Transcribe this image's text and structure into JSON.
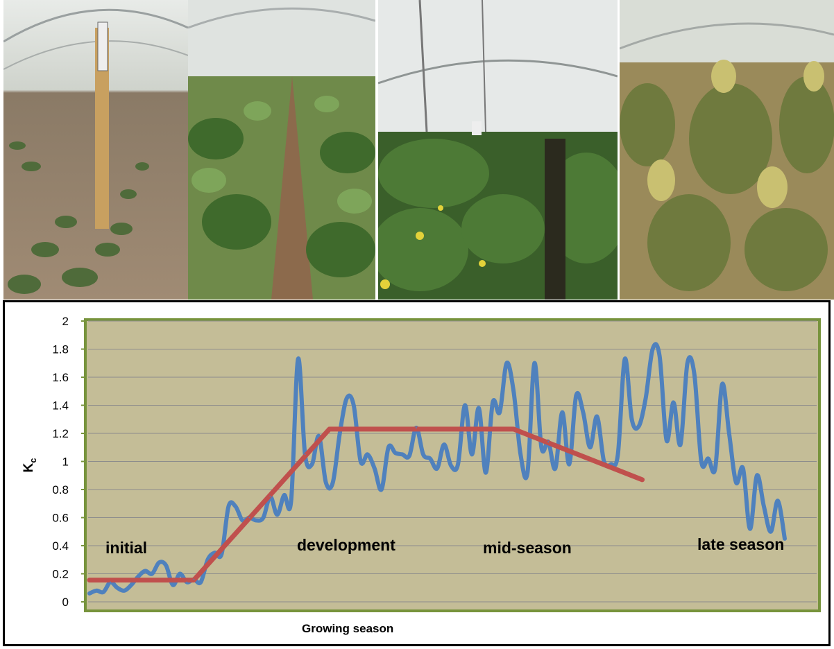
{
  "photos": [
    {
      "id": "initial",
      "label": "initial"
    },
    {
      "id": "development",
      "label": "development"
    },
    {
      "id": "mid",
      "label": "mid-season"
    },
    {
      "id": "late",
      "label": "late season"
    }
  ],
  "chart_data": {
    "type": "line",
    "title": "",
    "xlabel": "Growing  season",
    "ylabel_main": "K",
    "ylabel_sub": "c",
    "ylim": [
      0,
      2
    ],
    "yticks": [
      "0",
      "0.2",
      "0.4",
      "0.6",
      "0.8",
      "1",
      "1.2",
      "1.4",
      "1.6",
      "1.8",
      "2"
    ],
    "grid": true,
    "plot_background": "#c4bd97",
    "plot_border": "#77933c",
    "stage_labels": [
      "initial",
      "development",
      "mid-season",
      "late season"
    ],
    "series": [
      {
        "color": "#4f81bd",
        "x": [
          0,
          2,
          4,
          6,
          8,
          10,
          12,
          14,
          16,
          18,
          20,
          22,
          24,
          26,
          28,
          30,
          32,
          34,
          36,
          38,
          40,
          42,
          44,
          46,
          48,
          50,
          52,
          54,
          56,
          58,
          60,
          62,
          64,
          66,
          68,
          70,
          72,
          74,
          76,
          78,
          80,
          82,
          84,
          86,
          88,
          90,
          92,
          94,
          96,
          98,
          100,
          102,
          104,
          106,
          108,
          110,
          112,
          114,
          116,
          118,
          120,
          122,
          124,
          126,
          128,
          130,
          132,
          134,
          136,
          138,
          140,
          142,
          144,
          146,
          148,
          150,
          152,
          154,
          156,
          158,
          160,
          162,
          164,
          166,
          168,
          170,
          172,
          174,
          176,
          178,
          180,
          182,
          184,
          186,
          188,
          190,
          192,
          194,
          196,
          198,
          200
        ],
        "values": [
          0.06,
          0.08,
          0.07,
          0.14,
          0.1,
          0.08,
          0.12,
          0.18,
          0.22,
          0.2,
          0.28,
          0.26,
          0.12,
          0.2,
          0.14,
          0.16,
          0.14,
          0.3,
          0.35,
          0.34,
          0.68,
          0.68,
          0.58,
          0.6,
          0.58,
          0.6,
          0.75,
          0.62,
          0.76,
          0.72,
          1.73,
          1.05,
          0.98,
          1.18,
          0.85,
          0.85,
          1.2,
          1.45,
          1.4,
          1.0,
          1.05,
          0.95,
          0.8,
          1.1,
          1.06,
          1.05,
          1.04,
          1.24,
          1.05,
          1.02,
          0.95,
          1.12,
          0.97,
          0.98,
          1.4,
          1.05,
          1.38,
          0.92,
          1.42,
          1.35,
          1.7,
          1.5,
          1.05,
          0.92,
          1.7,
          1.1,
          1.14,
          0.95,
          1.35,
          0.98,
          1.47,
          1.35,
          1.1,
          1.32,
          1.0,
          0.98,
          1.05,
          1.73,
          1.3,
          1.25,
          1.45,
          1.8,
          1.75,
          1.15,
          1.42,
          1.12,
          1.7,
          1.62,
          1.0,
          1.02,
          0.95,
          1.55,
          1.2,
          0.85,
          0.95,
          0.52,
          0.9,
          0.68,
          0.5,
          0.72,
          0.45
        ]
      },
      {
        "color": "#c0504d",
        "x": [
          0,
          30,
          69,
          122,
          159
        ],
        "values": [
          0.155,
          0.155,
          1.23,
          1.23,
          0.87
        ]
      }
    ]
  }
}
